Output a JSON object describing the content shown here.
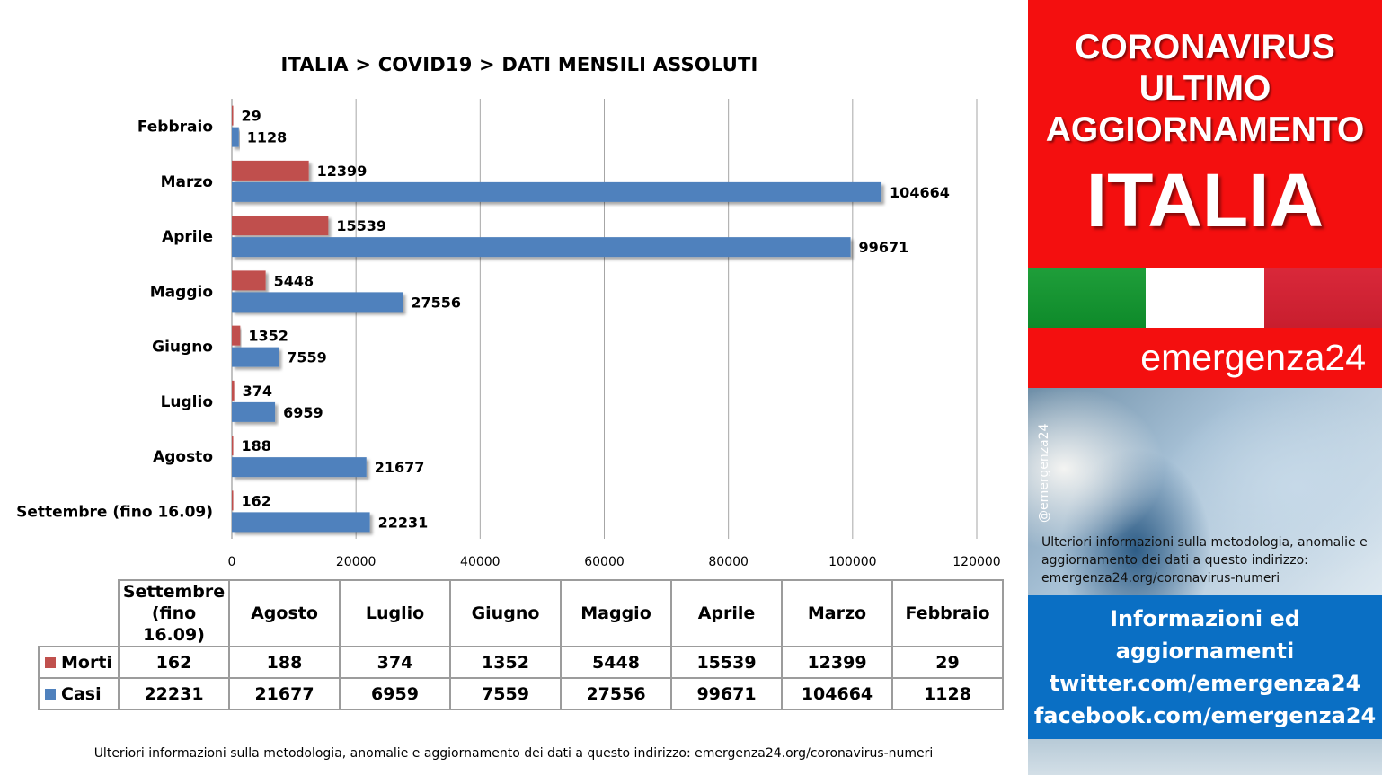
{
  "chart_data": {
    "type": "bar",
    "orientation": "horizontal",
    "title": "ITALIA >  COVID19 > DATI MENSILI  ASSOLUTI",
    "categories": [
      "Febbraio",
      "Marzo",
      "Aprile",
      "Maggio",
      "Giugno",
      "Luglio",
      "Agosto",
      "Settembre (fino 16.09)"
    ],
    "series": [
      {
        "name": "Morti",
        "color": "#c0504d",
        "values": [
          29,
          12399,
          15539,
          5448,
          1352,
          374,
          188,
          162
        ]
      },
      {
        "name": "Casi",
        "color": "#4f81bd",
        "values": [
          1128,
          104664,
          99671,
          27556,
          7559,
          6959,
          21677,
          22231
        ]
      }
    ],
    "xlim": [
      0,
      120000
    ],
    "xticks": [
      "0",
      "20000",
      "40000",
      "60000",
      "80000",
      "100000",
      "120000"
    ],
    "grid": true,
    "legend": "table-below"
  },
  "table": {
    "headers": [
      "Settembre\n(fino 16.09)",
      "Agosto",
      "Luglio",
      "Giugno",
      "Maggio",
      "Aprile",
      "Marzo",
      "Febbraio"
    ],
    "rows": [
      {
        "label": "Morti",
        "color": "#c0504d",
        "values": [
          "162",
          "188",
          "374",
          "1352",
          "5448",
          "15539",
          "12399",
          "29"
        ]
      },
      {
        "label": "Casi",
        "color": "#4f81bd",
        "values": [
          "22231",
          "21677",
          "6959",
          "7559",
          "27556",
          "99671",
          "104664",
          "1128"
        ]
      }
    ]
  },
  "footer_note": "Ulteriori informazioni sulla metodologia, anomalie e aggiornamento dei dati a questo indirizzo: emergenza24.org/coronavirus-numeri",
  "side": {
    "line1": "CORONAVIRUS",
    "line2": "ULTIMO",
    "line3": "AGGIORNAMENTO",
    "country": "ITALIA",
    "brand": "emergenza24",
    "handle": "@emergenza24",
    "info": "Ulteriori informazioni sulla metodologia, anomalie e aggiornamento dei dati a questo indirizzo: emergenza24.org/coronavirus-numeri",
    "contact": [
      "Informazioni ed",
      "aggiornamenti",
      "twitter.com/emergenza24",
      "facebook.com/emergenza24"
    ],
    "colors": {
      "red": "#f40f0f",
      "blue": "#0a6fc4",
      "flag_green": "#1f9e3a",
      "flag_red": "#d9283a"
    }
  }
}
